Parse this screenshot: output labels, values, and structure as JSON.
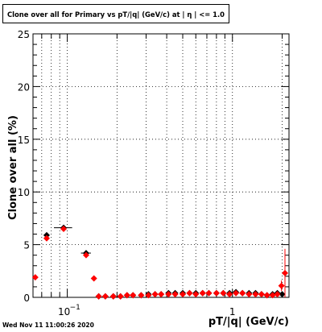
{
  "title": "Clone  over all for Primary vs pT/|q| (GeV/c) at |  η | <= 1.0",
  "footer": "Wed Nov 11 11:00:26 2020",
  "chart_data": {
    "type": "scatter",
    "title": "Clone  over all for Primary vs pT/|q| (GeV/c) at |  η | <= 1.0",
    "xlabel": "pT/|q| (GeV/c)",
    "ylabel": "Clone  over all (%)",
    "x_scale": "log",
    "xlim": [
      0.062,
      2.2
    ],
    "ylim": [
      0,
      25
    ],
    "x_tick_labels": [
      {
        "value": 0.1,
        "label": "10",
        "exp": "−1"
      },
      {
        "value": 1,
        "label": "1"
      }
    ],
    "y_ticks": [
      0,
      5,
      10,
      15,
      20,
      25
    ],
    "grid": true,
    "colors": {
      "series_black": "#000000",
      "series_red": "#ff0000",
      "grid": "#000000"
    },
    "series": [
      {
        "color": "#000000",
        "marker": "diamond",
        "points": [
          {
            "x": 0.075,
            "y": 5.9,
            "xerr": 0.003
          },
          {
            "x": 0.095,
            "y": 6.6,
            "xerr": 0.012
          },
          {
            "x": 0.13,
            "y": 4.2,
            "xerr": 0.009
          },
          {
            "x": 0.155,
            "y": 0.1
          },
          {
            "x": 0.17,
            "y": 0.1
          },
          {
            "x": 0.19,
            "y": 0.1
          },
          {
            "x": 0.21,
            "y": 0.1
          },
          {
            "x": 0.23,
            "y": 0.2
          },
          {
            "x": 0.25,
            "y": 0.2
          },
          {
            "x": 0.28,
            "y": 0.2
          },
          {
            "x": 0.31,
            "y": 0.3
          },
          {
            "x": 0.34,
            "y": 0.3
          },
          {
            "x": 0.37,
            "y": 0.3
          },
          {
            "x": 0.41,
            "y": 0.4
          },
          {
            "x": 0.45,
            "y": 0.4
          },
          {
            "x": 0.5,
            "y": 0.4
          },
          {
            "x": 0.55,
            "y": 0.4
          },
          {
            "x": 0.6,
            "y": 0.4
          },
          {
            "x": 0.66,
            "y": 0.4
          },
          {
            "x": 0.72,
            "y": 0.4
          },
          {
            "x": 0.8,
            "y": 0.4
          },
          {
            "x": 0.88,
            "y": 0.4
          },
          {
            "x": 0.96,
            "y": 0.4
          },
          {
            "x": 1.05,
            "y": 0.5
          },
          {
            "x": 1.15,
            "y": 0.4
          },
          {
            "x": 1.26,
            "y": 0.4
          },
          {
            "x": 1.38,
            "y": 0.4
          },
          {
            "x": 1.5,
            "y": 0.3
          },
          {
            "x": 1.62,
            "y": 0.2
          },
          {
            "x": 1.75,
            "y": 0.3
          },
          {
            "x": 1.87,
            "y": 0.4
          },
          {
            "x": 2.0,
            "y": 0.3
          }
        ]
      },
      {
        "color": "#ff0000",
        "marker": "diamond",
        "points": [
          {
            "x": 0.064,
            "y": 1.9
          },
          {
            "x": 0.075,
            "y": 5.6
          },
          {
            "x": 0.095,
            "y": 6.5
          },
          {
            "x": 0.13,
            "y": 4.0
          },
          {
            "x": 0.145,
            "y": 1.8
          },
          {
            "x": 0.155,
            "y": 0.1
          },
          {
            "x": 0.17,
            "y": 0.1
          },
          {
            "x": 0.19,
            "y": 0.1
          },
          {
            "x": 0.21,
            "y": 0.1
          },
          {
            "x": 0.23,
            "y": 0.2
          },
          {
            "x": 0.25,
            "y": 0.2
          },
          {
            "x": 0.28,
            "y": 0.2
          },
          {
            "x": 0.31,
            "y": 0.2
          },
          {
            "x": 0.34,
            "y": 0.3
          },
          {
            "x": 0.37,
            "y": 0.3
          },
          {
            "x": 0.41,
            "y": 0.3
          },
          {
            "x": 0.45,
            "y": 0.3
          },
          {
            "x": 0.5,
            "y": 0.3
          },
          {
            "x": 0.55,
            "y": 0.4
          },
          {
            "x": 0.6,
            "y": 0.3
          },
          {
            "x": 0.66,
            "y": 0.4
          },
          {
            "x": 0.72,
            "y": 0.4
          },
          {
            "x": 0.8,
            "y": 0.4
          },
          {
            "x": 0.88,
            "y": 0.4
          },
          {
            "x": 0.96,
            "y": 0.3
          },
          {
            "x": 1.05,
            "y": 0.4
          },
          {
            "x": 1.15,
            "y": 0.4
          },
          {
            "x": 1.26,
            "y": 0.3
          },
          {
            "x": 1.38,
            "y": 0.3
          },
          {
            "x": 1.5,
            "y": 0.3
          },
          {
            "x": 1.62,
            "y": 0.2
          },
          {
            "x": 1.75,
            "y": 0.2
          },
          {
            "x": 1.87,
            "y": 0.3
          },
          {
            "x": 1.98,
            "y": 1.1,
            "yerr": 0.5
          },
          {
            "x": 2.08,
            "y": 2.3,
            "yerr": 2.3
          }
        ]
      }
    ]
  }
}
